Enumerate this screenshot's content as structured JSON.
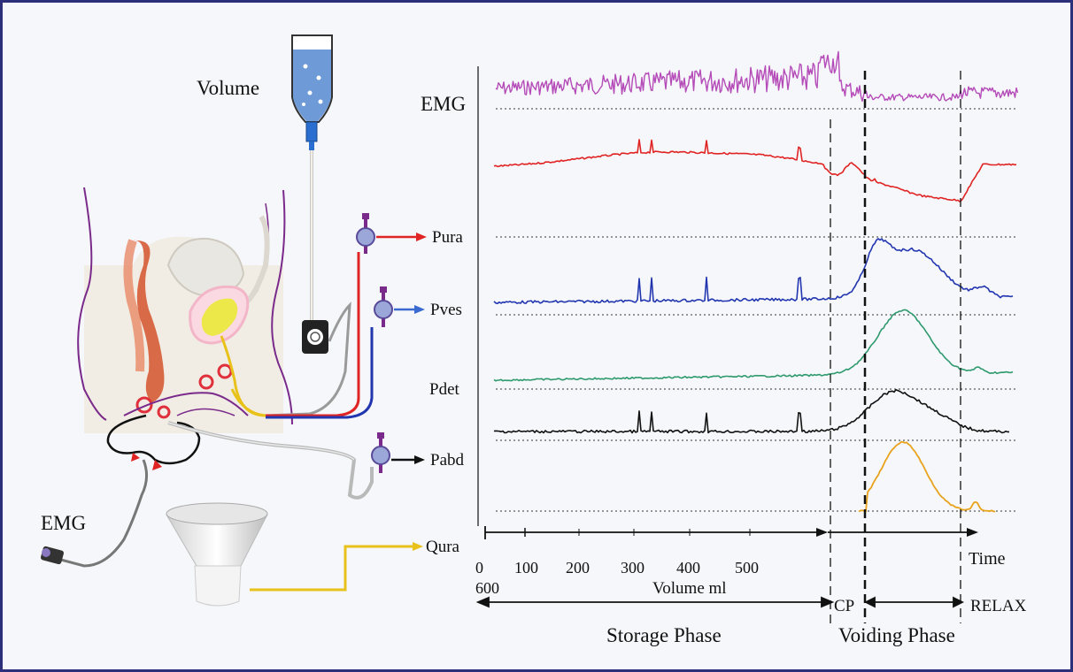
{
  "diagram": {
    "labels": {
      "volume": "Volume",
      "emg_left": "EMG",
      "emg_right": "EMG",
      "pura": "Pura",
      "pves": "Pves",
      "pdet": "Pdet",
      "pabd": "Pabd",
      "qura": "Qura",
      "time": "Time",
      "volume_axis": "Volume ml",
      "cp": "CP",
      "relax": "RELAX",
      "storage_phase": "Storage Phase",
      "voiding_phase": "Voiding Phase"
    },
    "volume_ticks": [
      "0",
      "100",
      "200",
      "300",
      "400",
      "500",
      "600"
    ],
    "colors": {
      "frame": "#2c2f7a",
      "emg": "#b44bb8",
      "pura": "#e02424",
      "pves": "#2236b0",
      "pdet": "#2e9a6e",
      "pabd": "#111111",
      "qura": "#e8a21c",
      "line_yellow": "#e8c21a",
      "catheter_purple": "#7a2a8a"
    },
    "icons": [
      "infusion-bag-icon",
      "pump-icon",
      "transducer-icon",
      "funnel-icon",
      "emg-connector-icon"
    ]
  }
}
